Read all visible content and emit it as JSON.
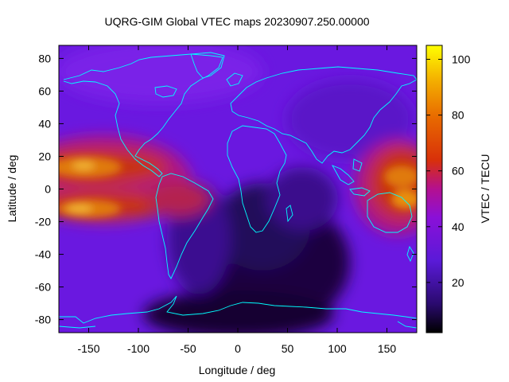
{
  "title": "UQRG-GIM Global VTEC maps 20230907.250.00000",
  "xlabel": "Longitude / deg",
  "ylabel": "Latitude / deg",
  "colorbar_label": "VTEC / TECU",
  "chart_data": {
    "type": "heatmap",
    "title": "UQRG-GIM Global VTEC maps 20230907.250.00000",
    "xlabel": "Longitude / deg",
    "ylabel": "Latitude / deg",
    "xlim": [
      -180,
      180
    ],
    "ylim": [
      -88,
      88
    ],
    "x_ticks": [
      -150,
      -100,
      -50,
      0,
      50,
      100,
      150
    ],
    "x_tick_labels": [
      "-150",
      "-100",
      "-50",
      "0",
      "50",
      "100",
      "150"
    ],
    "y_ticks": [
      -80,
      -60,
      -40,
      -20,
      0,
      20,
      40,
      60,
      80
    ],
    "y_tick_labels": [
      "-80",
      "-60",
      "-40",
      "-20",
      "0",
      "20",
      "40",
      "60",
      "80"
    ],
    "colorbar": {
      "label": "VTEC / TECU",
      "range": [
        2,
        105
      ],
      "ticks": [
        20,
        40,
        60,
        80,
        100
      ],
      "tick_labels": [
        "20",
        "40",
        "60",
        "80",
        "100"
      ],
      "palette": "black-blue-purple-red-orange-yellow (gnuplot default)"
    },
    "value_description_regions": [
      {
        "region": "equatorial anomaly crests east Pacific",
        "lon_center": -150,
        "lat_bands": [
          15,
          -15
        ],
        "vtec_approx": 80
      },
      {
        "region": "equatorial west Pacific",
        "lon_center": 170,
        "lat_bands": [
          15,
          -15
        ],
        "vtec_approx": 75
      },
      {
        "region": "night-side minimum southern Atlantic/Africa",
        "lon_center": 30,
        "lat_center": -40,
        "vtec_approx": 8
      },
      {
        "region": "high latitudes",
        "vtec_approx": 22
      }
    ],
    "grid": false,
    "coastlines_color": "#00ffff"
  }
}
